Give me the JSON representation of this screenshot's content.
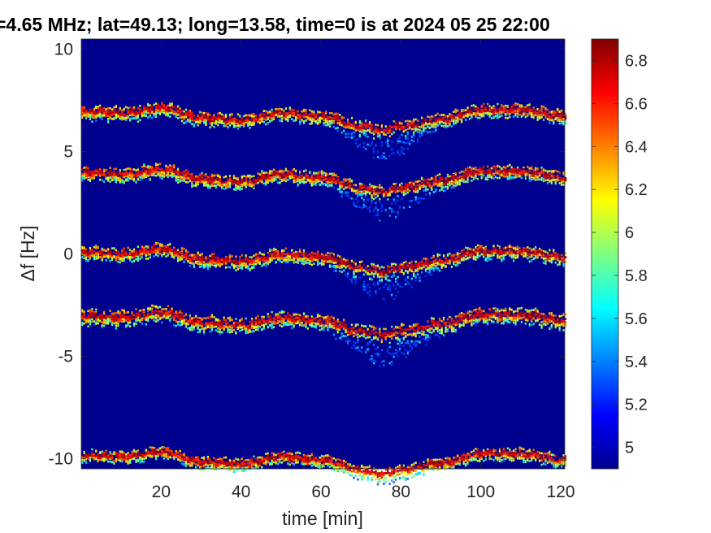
{
  "chart_data": {
    "type": "heatmap",
    "title": "=4.65 MHz;  lat=49.13; long=13.58, time=0 is at 2024 05 25 22:00",
    "xlabel": "time [min]",
    "ylabel": "Δf [Hz]",
    "xlim": [
      0,
      121
    ],
    "ylim": [
      -10.5,
      10.5
    ],
    "x_ticks": [
      20,
      40,
      60,
      80,
      100,
      120
    ],
    "y_ticks": [
      10,
      5,
      0,
      -5,
      -10
    ],
    "x_tick_labels": [
      "20",
      "40",
      "60",
      "80",
      "100",
      "120"
    ],
    "y_tick_labels": [
      "10",
      "5",
      "0",
      "-5",
      "-10"
    ],
    "colormap": "jet",
    "background_color": "#00008F",
    "colorbar": {
      "range": [
        4.9,
        6.9
      ],
      "ticks": [
        5,
        5.2,
        5.4,
        5.6,
        5.8,
        6,
        6.2,
        6.4,
        6.6,
        6.8
      ],
      "tick_labels": [
        "5",
        "5.2",
        "5.4",
        "5.6",
        "5.8",
        "6",
        "6.2",
        "6.4",
        "6.6",
        "6.8"
      ]
    },
    "traces": [
      {
        "base": 7.0,
        "spread": 0.35
      },
      {
        "base": 4.0,
        "spread": 0.35
      },
      {
        "base": 0.1,
        "spread": 0.35
      },
      {
        "base": -3.0,
        "spread": 0.4
      },
      {
        "base": -9.8,
        "spread": 0.3
      }
    ],
    "trace_profile": {
      "x": [
        0,
        10,
        20,
        30,
        40,
        50,
        60,
        70,
        75,
        80,
        90,
        100,
        110,
        121
      ],
      "offset": [
        0.0,
        -0.1,
        0.15,
        -0.35,
        -0.45,
        -0.1,
        -0.25,
        -0.75,
        -0.95,
        -0.75,
        -0.4,
        0.05,
        0.05,
        -0.25
      ]
    }
  }
}
